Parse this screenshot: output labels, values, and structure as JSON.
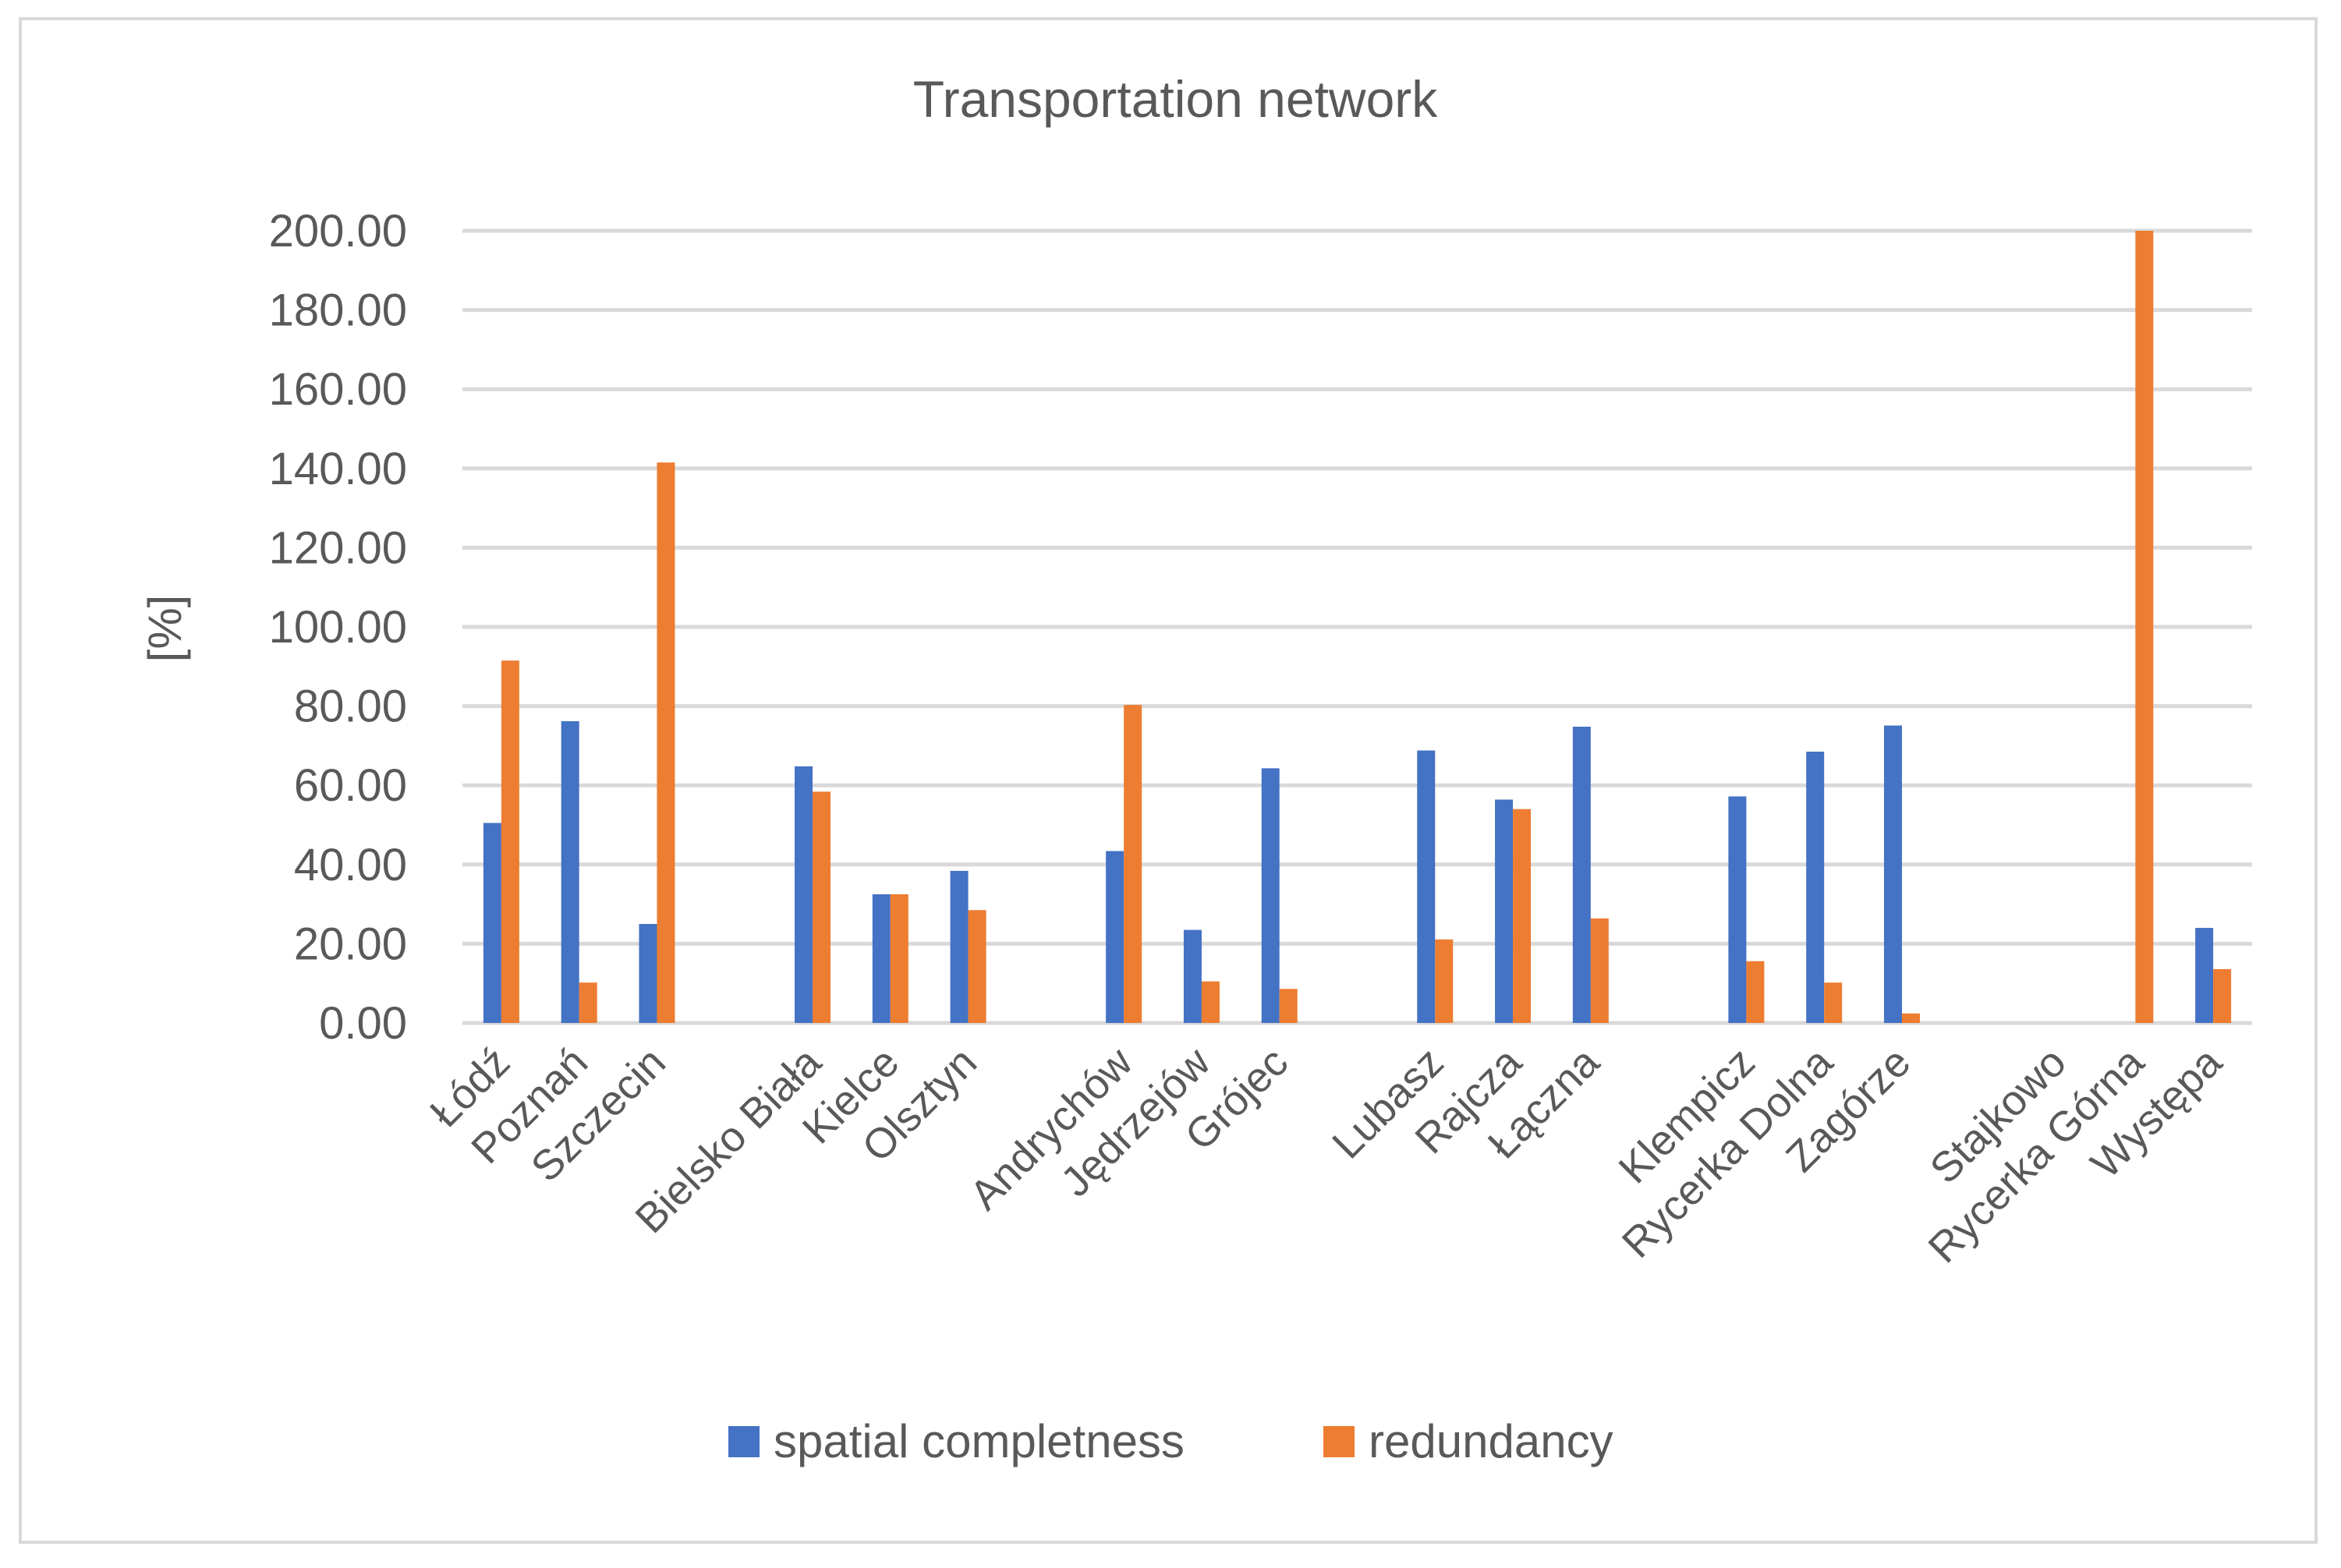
{
  "chart_data": {
    "type": "bar",
    "title": "Transportation network",
    "xlabel": "",
    "ylabel": "[%]",
    "ylim": [
      0,
      200
    ],
    "yticks": [
      "0.00",
      "20.00",
      "40.00",
      "60.00",
      "80.00",
      "100.00",
      "120.00",
      "140.00",
      "160.00",
      "180.00",
      "200.00"
    ],
    "grid": true,
    "legend_position": "bottom",
    "categories": [
      "Łódź",
      "Poznań",
      "Szczecin",
      "",
      "Bielsko Biała",
      "Kielce",
      "Olsztyn",
      "",
      "Andrychów",
      "Jędrzejów",
      "Grójec",
      "",
      "Lubasz",
      "Rajcza",
      "Łączna",
      "",
      "Klempicz",
      "Rycerka Dolna",
      "Zagórze",
      "",
      "Stajkowo",
      "Rycerka Górna",
      "Występa"
    ],
    "series": [
      {
        "name": "spatial completness",
        "color": "#4472c4",
        "values": [
          50.5,
          76.2,
          25.0,
          null,
          64.8,
          32.5,
          38.4,
          null,
          43.4,
          23.5,
          64.3,
          null,
          68.8,
          56.4,
          74.8,
          null,
          57.2,
          68.5,
          75.1,
          null,
          0,
          0,
          24.0
        ]
      },
      {
        "name": "redundancy",
        "color": "#ed7d31",
        "values": [
          91.5,
          10.2,
          141.5,
          null,
          58.4,
          32.5,
          28.5,
          null,
          80.3,
          10.5,
          8.6,
          null,
          21.1,
          54.0,
          26.4,
          null,
          15.6,
          10.2,
          2.4,
          null,
          0,
          200.0,
          13.6
        ]
      }
    ]
  }
}
